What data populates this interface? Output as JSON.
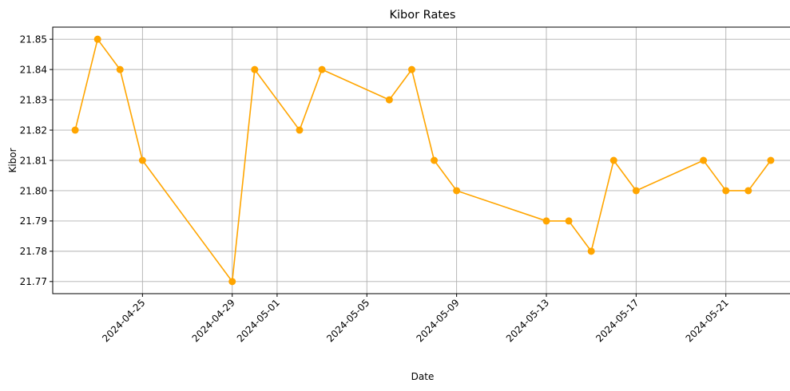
{
  "chart_data": {
    "type": "line",
    "title": "Kibor Rates",
    "xlabel": "Date",
    "ylabel": "Kibor",
    "grid": true,
    "color": "#FFA500",
    "marker": "circle",
    "x_type": "date",
    "xlim": [
      "2024-04-21",
      "2024-05-24"
    ],
    "ylim": [
      21.766,
      21.854
    ],
    "xticks": [
      "2024-04-25",
      "2024-04-29",
      "2024-05-01",
      "2024-05-05",
      "2024-05-09",
      "2024-05-13",
      "2024-05-17",
      "2024-05-21"
    ],
    "yticks": [
      "21.77",
      "21.78",
      "21.79",
      "21.80",
      "21.81",
      "21.82",
      "21.83",
      "21.84",
      "21.85"
    ],
    "series": [
      {
        "x": [
          "2024-04-22",
          "2024-04-23",
          "2024-04-24",
          "2024-04-25",
          "2024-04-29",
          "2024-04-30",
          "2024-05-02",
          "2024-05-03",
          "2024-05-06",
          "2024-05-07",
          "2024-05-08",
          "2024-05-09",
          "2024-05-13",
          "2024-05-14",
          "2024-05-15",
          "2024-05-16",
          "2024-05-17",
          "2024-05-20",
          "2024-05-21",
          "2024-05-22",
          "2024-05-23"
        ],
        "values": [
          21.82,
          21.85,
          21.84,
          21.81,
          21.77,
          21.84,
          21.82,
          21.84,
          21.83,
          21.84,
          21.81,
          21.8,
          21.79,
          21.79,
          21.78,
          21.81,
          21.8,
          21.81,
          21.8,
          21.8,
          21.81
        ]
      }
    ]
  }
}
